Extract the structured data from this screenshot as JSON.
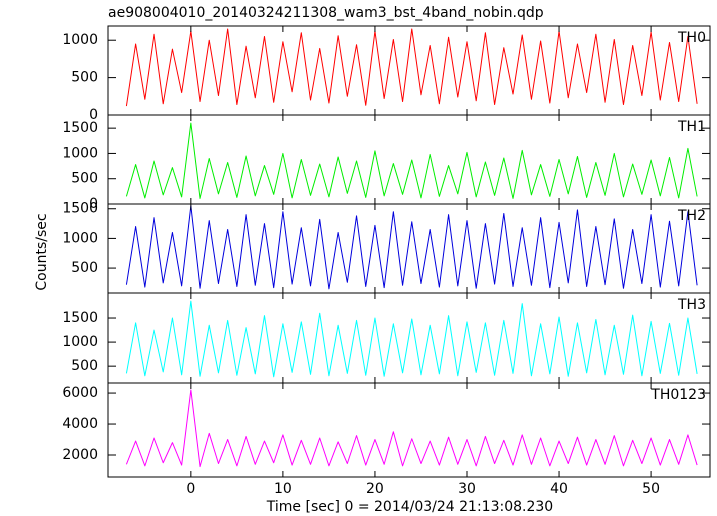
{
  "chart_data": {
    "type": "line",
    "title": "ae908004010_20140324211308_wam3_bst_4band_nobin.qdp",
    "xlabel": "Time [sec] 0 = 2014/03/24 21:13:08.230",
    "ylabel": "Counts/sec",
    "x": [
      -7,
      -6,
      -5,
      -4,
      -3,
      -2,
      -1,
      0,
      1,
      2,
      3,
      4,
      5,
      6,
      7,
      8,
      9,
      10,
      11,
      12,
      13,
      14,
      15,
      16,
      17,
      18,
      19,
      20,
      21,
      22,
      23,
      24,
      25,
      26,
      27,
      28,
      29,
      30,
      31,
      32,
      33,
      34,
      35,
      36,
      37,
      38,
      39,
      40,
      41,
      42,
      43,
      44,
      45,
      46,
      47,
      48,
      49,
      50,
      51,
      52,
      53,
      54,
      55
    ],
    "xlim": [
      -9,
      56.4
    ],
    "xticks": [
      0,
      10,
      20,
      30,
      40,
      50
    ],
    "series": [
      {
        "name": "TH0",
        "color": "#ff0000",
        "ylim": [
          0,
          1190
        ],
        "yticks": [
          0,
          500,
          1000
        ],
        "values": [
          120,
          950,
          210,
          1080,
          150,
          880,
          300,
          1120,
          180,
          1000,
          260,
          1150,
          140,
          920,
          230,
          1050,
          170,
          980,
          310,
          1100,
          200,
          890,
          160,
          1060,
          250,
          940,
          130,
          1120,
          220,
          1010,
          180,
          1150,
          270,
          930,
          150,
          1040,
          240,
          980,
          190,
          1100,
          140,
          900,
          280,
          1070,
          210,
          990,
          160,
          1120,
          230,
          950,
          300,
          1080,
          170,
          1010,
          140,
          930,
          260,
          1110,
          200,
          970,
          180,
          1050,
          150
        ]
      },
      {
        "name": "TH1",
        "color": "#00ee00",
        "ylim": [
          0,
          1760
        ],
        "yticks": [
          0,
          500,
          1000,
          1500
        ],
        "values": [
          150,
          780,
          120,
          850,
          180,
          720,
          140,
          1600,
          110,
          900,
          200,
          820,
          130,
          950,
          160,
          760,
          190,
          1000,
          120,
          880,
          170,
          790,
          140,
          930,
          210,
          850,
          130,
          1050,
          160,
          800,
          190,
          870,
          120,
          980,
          150,
          760,
          200,
          1020,
          140,
          830,
          170,
          910,
          110,
          1060,
          180,
          780,
          150,
          880,
          200,
          940,
          130,
          820,
          170,
          1000,
          140,
          790,
          190,
          870,
          160,
          920,
          120,
          1100,
          150
        ]
      },
      {
        "name": "TH2",
        "color": "#0000dd",
        "ylim": [
          80,
          1580
        ],
        "yticks": [
          500,
          1000,
          1500
        ],
        "values": [
          220,
          1200,
          180,
          1350,
          250,
          1100,
          200,
          1550,
          160,
          1300,
          240,
          1150,
          190,
          1400,
          210,
          1250,
          170,
          1450,
          230,
          1180,
          200,
          1320,
          150,
          1100,
          260,
          1380,
          190,
          1220,
          170,
          1450,
          210,
          1280,
          240,
          1150,
          180,
          1400,
          200,
          1300,
          160,
          1250,
          230,
          1420,
          190,
          1180,
          210,
          1350,
          170,
          1270,
          250,
          1480,
          190,
          1200,
          220,
          1330,
          160,
          1150,
          240,
          1400,
          180,
          1290,
          200,
          1450,
          210
        ]
      },
      {
        "name": "TH3",
        "color": "#00ffff",
        "ylim": [
          150,
          2020
        ],
        "yticks": [
          500,
          1000,
          1500
        ],
        "values": [
          350,
          1400,
          300,
          1250,
          380,
          1500,
          320,
          1850,
          290,
          1350,
          360,
          1450,
          310,
          1300,
          340,
          1550,
          280,
          1380,
          370,
          1420,
          330,
          1600,
          300,
          1350,
          350,
          1450,
          310,
          1500,
          290,
          1380,
          360,
          1480,
          320,
          1350,
          340,
          1550,
          300,
          1420,
          370,
          1400,
          310,
          1450,
          350,
          1800,
          300,
          1380,
          340,
          1520,
          290,
          1400,
          360,
          1470,
          320,
          1350,
          330,
          1560,
          300,
          1430,
          350,
          1390,
          310,
          1500,
          340
        ]
      },
      {
        "name": "TH0123",
        "color": "#ff00ff",
        "ylim": [
          580,
          6650
        ],
        "yticks": [
          2000,
          4000,
          6000
        ],
        "values": [
          1400,
          2900,
          1300,
          3100,
          1500,
          2800,
          1350,
          6200,
          1250,
          3400,
          1450,
          3000,
          1300,
          3200,
          1400,
          2900,
          1500,
          3300,
          1350,
          2950,
          1400,
          3100,
          1300,
          2850,
          1450,
          3250,
          1350,
          3000,
          1400,
          3500,
          1300,
          3050,
          1450,
          2900,
          1350,
          3150,
          1400,
          3000,
          1300,
          3200,
          1450,
          2950,
          1350,
          3300,
          1400,
          3100,
          1300,
          2900,
          1450,
          3150,
          1350,
          3000,
          1400,
          3250,
          1300,
          2950,
          1450,
          3100,
          1350,
          3000,
          1400,
          3300,
          1350
        ]
      }
    ]
  }
}
